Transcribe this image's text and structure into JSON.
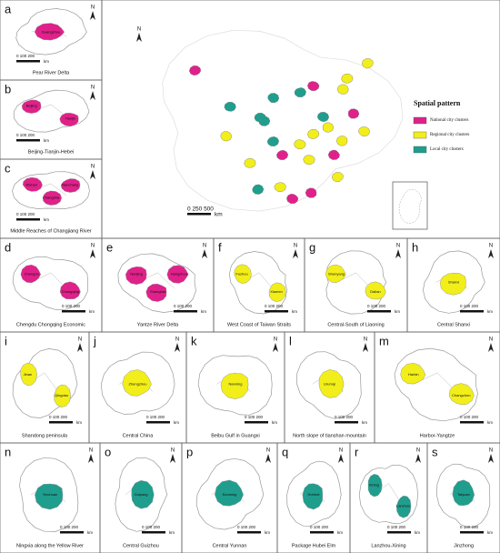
{
  "legend": {
    "title": "Spatial pattern",
    "items": [
      {
        "label": "National city clusters",
        "color": "#e0218a"
      },
      {
        "label": "Regional city clusters",
        "color": "#f2ee1a"
      },
      {
        "label": "Local city clusters",
        "color": "#1f9e8e"
      }
    ]
  },
  "main_map": {
    "north": "N",
    "scale": "0   250   500",
    "unit": "km"
  },
  "panels": [
    {
      "letter": "a",
      "caption": "Pear River Delta",
      "cluster": 0,
      "north": "N",
      "scale": "0  100  200",
      "unit": "km",
      "cities": [
        "Guangzhou"
      ]
    },
    {
      "letter": "b",
      "caption": "Beijing-Tianjin-Hebei",
      "cluster": 0,
      "north": "N",
      "scale": "0  100  200",
      "unit": "km",
      "cities": [
        "Beijing",
        "Tianjin"
      ]
    },
    {
      "letter": "c",
      "caption": "Middle Reaches of Changjiang River",
      "cluster": 0,
      "north": "N",
      "scale": "0  100  200",
      "unit": "km",
      "cities": [
        "Wuhan",
        "Changsha",
        "Nanchang"
      ]
    },
    {
      "letter": "d",
      "caption": "Chengdu Chongqing Economic",
      "cluster": 0,
      "north": "N",
      "scale": "0  100  200",
      "unit": "km",
      "cities": [
        "Chengdu",
        "Chongqing"
      ]
    },
    {
      "letter": "e",
      "caption": "Yantze River Delta",
      "cluster": 0,
      "north": "N",
      "scale": "0  100  200",
      "unit": "km",
      "cities": [
        "Nanjing",
        "Shanghai",
        "Hangzhou"
      ]
    },
    {
      "letter": "f",
      "caption": "West Coast of Taiwan Straits",
      "cluster": 1,
      "north": "N",
      "scale": "0  100  200",
      "unit": "km",
      "cities": [
        "Fuzhou",
        "Xiamen"
      ]
    },
    {
      "letter": "g",
      "caption": "Central-South of Liaoning",
      "cluster": 1,
      "north": "N",
      "scale": "0  100  200",
      "unit": "km",
      "cities": [
        "Shenyang",
        "Dalian"
      ]
    },
    {
      "letter": "h",
      "caption": "Central Shanxi",
      "cluster": 1,
      "north": "N",
      "scale": "0  100  200",
      "unit": "km",
      "cities": [
        "Shanxi"
      ]
    },
    {
      "letter": "i",
      "caption": "Shandong peninsula",
      "cluster": 1,
      "north": "N",
      "scale": "0  100  200",
      "unit": "km",
      "cities": [
        "Jinan",
        "Qingdao"
      ]
    },
    {
      "letter": "j",
      "caption": "Central China",
      "cluster": 1,
      "north": "N",
      "scale": "0  100  200",
      "unit": "km",
      "cities": [
        "Zhengzhou"
      ]
    },
    {
      "letter": "k",
      "caption": "Beibu Gulf in Guangxi",
      "cluster": 1,
      "north": "N",
      "scale": "0  100  200",
      "unit": "km",
      "cities": [
        "Nanning"
      ]
    },
    {
      "letter": "l",
      "caption": "North slope of tianshan mountain",
      "cluster": 1,
      "north": "N",
      "scale": "0  100  200",
      "unit": "km",
      "cities": [
        "Urumqi"
      ]
    },
    {
      "letter": "m",
      "caption": "Harbor-Yangtze",
      "cluster": 1,
      "north": "N",
      "scale": "0  100  200",
      "unit": "km",
      "cities": [
        "Harbin",
        "Changchun"
      ]
    },
    {
      "letter": "n",
      "caption": "Ningxia along the Yellow River",
      "cluster": 2,
      "north": "N",
      "scale": "0  100  200",
      "unit": "km",
      "cities": [
        "Yinchuan"
      ]
    },
    {
      "letter": "o",
      "caption": "Central Guizhou",
      "cluster": 2,
      "north": "N",
      "scale": "0  100  200",
      "unit": "km",
      "cities": [
        "Guiyang"
      ]
    },
    {
      "letter": "p",
      "caption": "Central Yunnan",
      "cluster": 2,
      "north": "N",
      "scale": "0  100  200",
      "unit": "km",
      "cities": [
        "Kunming"
      ]
    },
    {
      "letter": "q",
      "caption": "Package Hubei Elm",
      "cluster": 2,
      "north": "N",
      "scale": "0  100  200",
      "unit": "km",
      "cities": [
        "Hohhot"
      ]
    },
    {
      "letter": "r",
      "caption": "Lanzhou-Xining",
      "cluster": 2,
      "north": "N",
      "scale": "0  100  200",
      "unit": "km",
      "cities": [
        "Xining",
        "Lanzhou"
      ]
    },
    {
      "letter": "s",
      "caption": "Jinzhong",
      "cluster": 2,
      "north": "N",
      "scale": "0  100  200",
      "unit": "km",
      "cities": [
        "Taiyuan"
      ]
    }
  ]
}
